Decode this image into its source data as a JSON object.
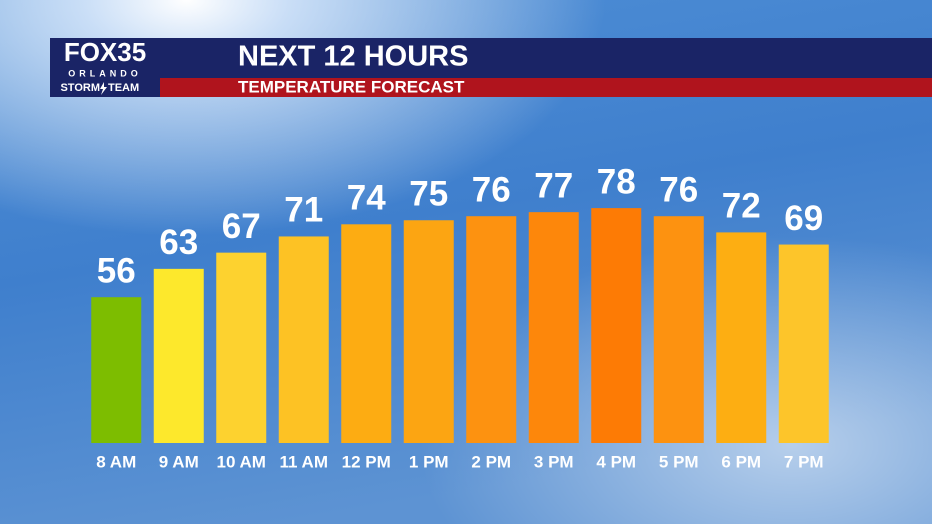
{
  "chart_data": {
    "type": "bar",
    "brand": {
      "name": "FOX35",
      "city": "ORLANDO",
      "team_left": "STORM",
      "team_right": "TEAM"
    },
    "title": "NEXT 12 HOURS",
    "subtitle": "TEMPERATURE FORECAST",
    "categories": [
      "8 AM",
      "9 AM",
      "10 AM",
      "11 AM",
      "12 PM",
      "1 PM",
      "2 PM",
      "3 PM",
      "4 PM",
      "5 PM",
      "6 PM",
      "7 PM"
    ],
    "values": [
      56,
      63,
      67,
      71,
      74,
      75,
      76,
      77,
      78,
      76,
      72,
      69
    ],
    "colors": [
      "#7dbd00",
      "#fde82c",
      "#fdd22f",
      "#fdc224",
      "#fdac12",
      "#fca512",
      "#fd9210",
      "#fd870b",
      "#fd7b05",
      "#fd9210",
      "#fdae12",
      "#fdc52a"
    ],
    "ylim": [
      20,
      100
    ]
  }
}
